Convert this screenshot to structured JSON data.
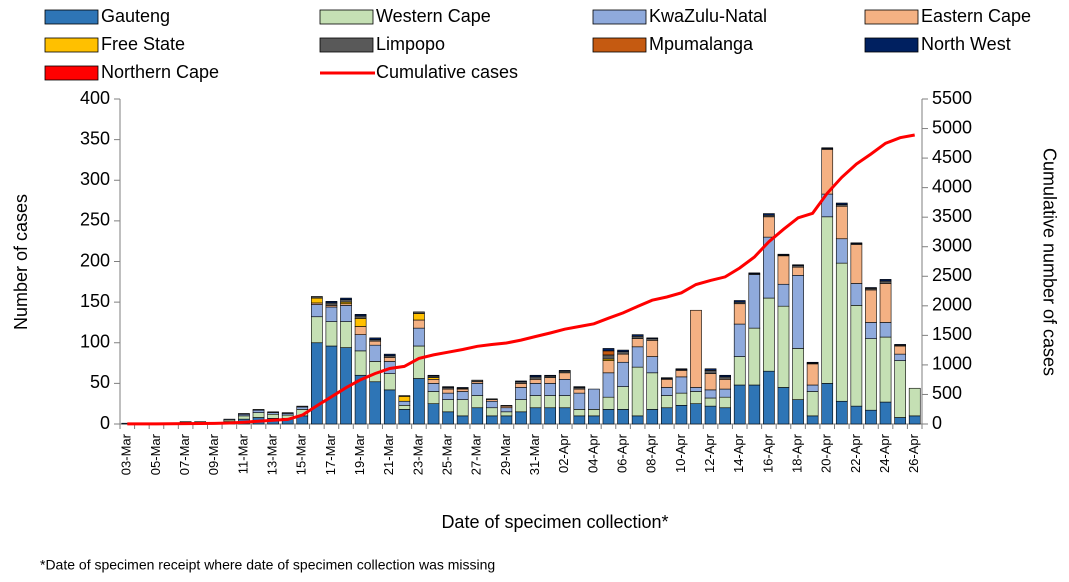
{
  "chart_data": {
    "type": "bar",
    "stacked": true,
    "x_label": "Date of specimen collection*",
    "y_label": "Number of cases",
    "y2_label": "Cumulative number of cases",
    "footnote": "*Date of specimen receipt where date of specimen collection was missing",
    "categories": [
      "03-Mar",
      null,
      "05-Mar",
      null,
      "07-Mar",
      null,
      "09-Mar",
      null,
      "11-Mar",
      null,
      "13-Mar",
      null,
      "15-Mar",
      null,
      "17-Mar",
      null,
      "19-Mar",
      null,
      "21-Mar",
      null,
      "23-Mar",
      null,
      "25-Mar",
      null,
      "27-Mar",
      null,
      "29-Mar",
      null,
      "31-Mar",
      null,
      "02-Apr",
      null,
      "04-Apr",
      null,
      "06-Apr",
      null,
      "08-Apr",
      null,
      "10-Apr",
      null,
      "12-Apr",
      null,
      "14-Apr",
      null,
      "16-Apr",
      null,
      "18-Apr",
      null,
      "20-Apr",
      null,
      "22-Apr",
      null,
      "24-Apr",
      null,
      "26-Apr"
    ],
    "ylim": [
      0,
      400
    ],
    "yticks": [
      0,
      50,
      100,
      150,
      200,
      250,
      300,
      350,
      400
    ],
    "y2lim": [
      0,
      5500
    ],
    "y2ticks": [
      0,
      500,
      1000,
      1500,
      2000,
      2500,
      3000,
      3500,
      4000,
      4500,
      5000,
      5500
    ],
    "grid": false,
    "series": [
      {
        "name": "Gauteng",
        "color": "#2e75b6",
        "values": [
          1,
          0,
          1,
          1,
          2,
          2,
          1,
          3,
          6,
          8,
          7,
          7,
          10,
          100,
          96,
          94,
          60,
          52,
          42,
          18,
          56,
          25,
          15,
          10,
          20,
          10,
          10,
          15,
          20,
          20,
          20,
          10,
          10,
          18,
          18,
          10,
          18,
          20,
          23,
          25,
          22,
          20,
          48,
          48,
          65,
          45,
          30,
          10,
          50,
          28,
          22,
          17,
          27,
          8,
          10
        ]
      },
      {
        "name": "Western Cape",
        "color": "#c5e0b4",
        "values": [
          0,
          0,
          0,
          0,
          1,
          1,
          1,
          2,
          4,
          6,
          5,
          4,
          8,
          32,
          30,
          32,
          30,
          25,
          20,
          5,
          40,
          15,
          15,
          20,
          15,
          10,
          5,
          15,
          15,
          15,
          15,
          8,
          8,
          15,
          28,
          60,
          45,
          15,
          15,
          15,
          10,
          13,
          35,
          70,
          90,
          100,
          63,
          30,
          205,
          170,
          124,
          88,
          80,
          70,
          34
        ]
      },
      {
        "name": "KwaZulu-Natal",
        "color": "#8faadc",
        "values": [
          0,
          0,
          0,
          0,
          0,
          0,
          0,
          1,
          2,
          3,
          2,
          2,
          3,
          15,
          18,
          20,
          20,
          20,
          15,
          5,
          22,
          10,
          8,
          10,
          15,
          8,
          5,
          15,
          15,
          15,
          20,
          20,
          25,
          30,
          30,
          25,
          20,
          10,
          20,
          5,
          10,
          10,
          40,
          66,
          75,
          27,
          90,
          8,
          28,
          30,
          27,
          20,
          18,
          8,
          0
        ]
      },
      {
        "name": "Eastern Cape",
        "color": "#f4b183",
        "values": [
          0,
          0,
          0,
          0,
          0,
          0,
          0,
          0,
          0,
          0,
          0,
          0,
          0,
          2,
          2,
          2,
          10,
          5,
          5,
          0,
          10,
          5,
          5,
          3,
          2,
          2,
          2,
          5,
          5,
          7,
          8,
          5,
          0,
          15,
          10,
          10,
          20,
          10,
          8,
          95,
          20,
          12,
          25,
          0,
          25,
          35,
          10,
          26,
          55,
          40,
          48,
          40,
          48,
          10,
          0
        ]
      },
      {
        "name": "Free State",
        "color": "#ffc000",
        "values": [
          0,
          0,
          0,
          0,
          0,
          0,
          0,
          0,
          0,
          0,
          0,
          0,
          0,
          6,
          0,
          2,
          10,
          0,
          0,
          6,
          8,
          2,
          0,
          0,
          0,
          0,
          0,
          0,
          0,
          0,
          0,
          0,
          0,
          2,
          0,
          0,
          0,
          0,
          0,
          0,
          0,
          0,
          0,
          0,
          0,
          0,
          0,
          0,
          0,
          0,
          0,
          0,
          0,
          0,
          0
        ]
      },
      {
        "name": "Limpopo",
        "color": "#595959",
        "values": [
          0,
          0,
          0,
          0,
          0,
          0,
          0,
          0,
          1,
          1,
          1,
          1,
          1,
          2,
          3,
          3,
          3,
          2,
          2,
          1,
          2,
          2,
          2,
          1,
          2,
          1,
          1,
          2,
          3,
          2,
          2,
          2,
          0,
          5,
          3,
          3,
          2,
          1,
          1,
          0,
          4,
          3,
          2,
          1,
          2,
          1,
          2,
          1,
          1,
          2,
          1,
          2,
          3,
          1,
          0
        ]
      },
      {
        "name": "Mpumalanga",
        "color": "#c55a11",
        "values": [
          0,
          0,
          0,
          0,
          0,
          0,
          0,
          0,
          0,
          0,
          0,
          0,
          0,
          0,
          0,
          0,
          0,
          0,
          0,
          0,
          0,
          0,
          0,
          0,
          0,
          0,
          0,
          0,
          0,
          0,
          0,
          0,
          0,
          5,
          0,
          0,
          0,
          0,
          0,
          0,
          0,
          0,
          0,
          0,
          0,
          0,
          0,
          0,
          0,
          0,
          0,
          0,
          0,
          0,
          0
        ]
      },
      {
        "name": "North West",
        "color": "#002060",
        "values": [
          0,
          0,
          0,
          0,
          0,
          0,
          0,
          0,
          0,
          0,
          0,
          0,
          0,
          0,
          2,
          2,
          2,
          2,
          2,
          0,
          0,
          1,
          1,
          1,
          0,
          0,
          0,
          1,
          2,
          1,
          1,
          1,
          0,
          3,
          2,
          2,
          1,
          1,
          1,
          0,
          2,
          2,
          2,
          1,
          2,
          1,
          1,
          1,
          1,
          2,
          1,
          1,
          2,
          1,
          0
        ]
      },
      {
        "name": "Northern Cape",
        "color": "#ff0000",
        "values": [
          0,
          0,
          0,
          0,
          0,
          0,
          0,
          0,
          0,
          0,
          0,
          0,
          0,
          0,
          0,
          0,
          0,
          0,
          0,
          0,
          0,
          0,
          0,
          0,
          0,
          0,
          0,
          0,
          0,
          0,
          0,
          0,
          0,
          0,
          0,
          0,
          0,
          0,
          0,
          0,
          0,
          0,
          0,
          0,
          0,
          0,
          0,
          0,
          0,
          0,
          0,
          0,
          0,
          0,
          0
        ]
      },
      {
        "name": "Cumulative cases",
        "type": "line",
        "axis": "y2",
        "color": "#ff0000",
        "values": [
          1,
          1,
          2,
          3,
          6,
          9,
          11,
          17,
          30,
          48,
          63,
          77,
          150,
          310,
          460,
          615,
          750,
          855,
          940,
          975,
          1110,
          1170,
          1215,
          1260,
          1315,
          1345,
          1370,
          1420,
          1480,
          1540,
          1605,
          1650,
          1695,
          1790,
          1880,
          1990,
          2095,
          2150,
          2220,
          2360,
          2430,
          2490,
          2640,
          2825,
          3085,
          3295,
          3490,
          3565,
          3905,
          4175,
          4400,
          4570,
          4750,
          4845,
          4890
        ]
      }
    ]
  }
}
